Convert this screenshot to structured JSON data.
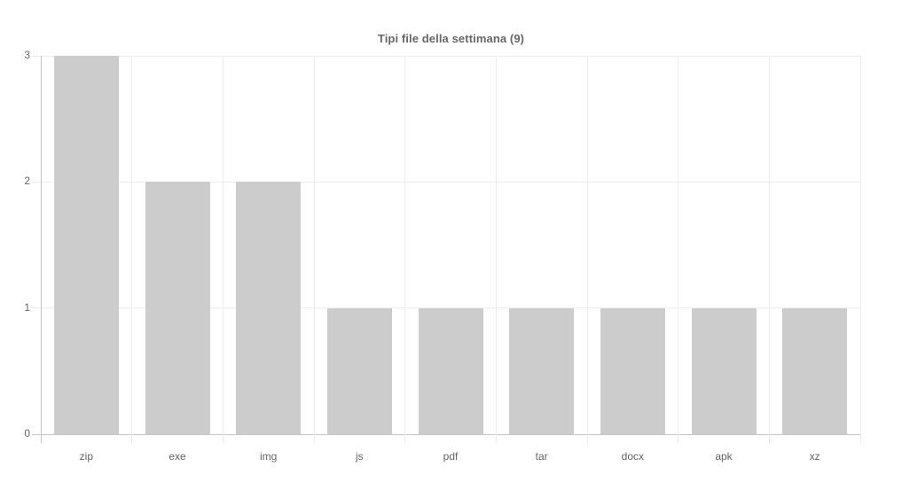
{
  "chart_data": {
    "type": "bar",
    "title": "Tipi file della settimana (9)",
    "categories": [
      "zip",
      "exe",
      "img",
      "js",
      "pdf",
      "tar",
      "docx",
      "apk",
      "xz"
    ],
    "values": [
      3,
      2,
      2,
      1,
      1,
      1,
      1,
      1,
      1
    ],
    "y_ticks": [
      0,
      1,
      2,
      3
    ],
    "ylim": [
      0,
      3
    ],
    "xlabel": "",
    "ylabel": "",
    "grid": "on",
    "legend": "none",
    "bar_color": "#cccccc",
    "grid_color": "#ececec",
    "axis_color": "#c4c4c4",
    "text_color": "#666666",
    "title_color": "#666666",
    "background": "#ffffff"
  }
}
